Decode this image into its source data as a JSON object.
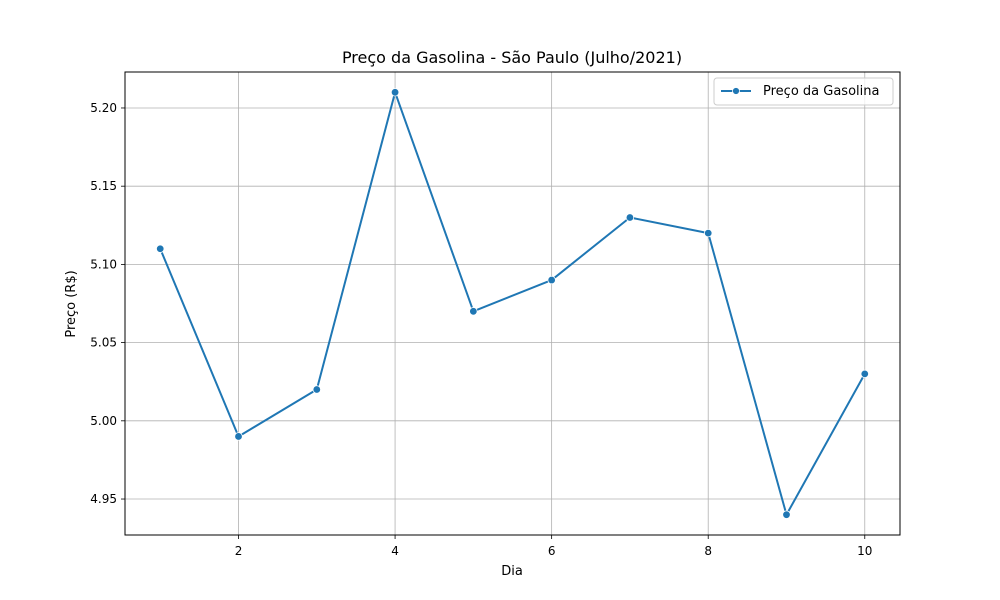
{
  "chart_data": {
    "type": "line",
    "title": "Preço da Gasolina - São Paulo (Julho/2021)",
    "xlabel": "Dia",
    "ylabel": "Preço (R$)",
    "x": [
      1,
      2,
      3,
      4,
      5,
      6,
      7,
      8,
      9,
      10
    ],
    "series": [
      {
        "name": "Preço da Gasolina",
        "values": [
          5.11,
          4.99,
          5.02,
          5.21,
          5.07,
          5.09,
          5.13,
          5.12,
          4.94,
          5.03
        ],
        "color": "#1f77b4",
        "marker": "circle"
      }
    ],
    "xlim": [
      0.55,
      10.45
    ],
    "ylim": [
      4.927,
      5.223
    ],
    "xticks": [
      2,
      4,
      6,
      8,
      10
    ],
    "xtick_labels": [
      "2",
      "4",
      "6",
      "8",
      "10"
    ],
    "yticks": [
      4.95,
      5.0,
      5.05,
      5.1,
      5.15,
      5.2
    ],
    "ytick_labels": [
      "4.95",
      "5.00",
      "5.05",
      "5.10",
      "5.15",
      "5.20"
    ],
    "grid": true,
    "legend": "top-right"
  }
}
